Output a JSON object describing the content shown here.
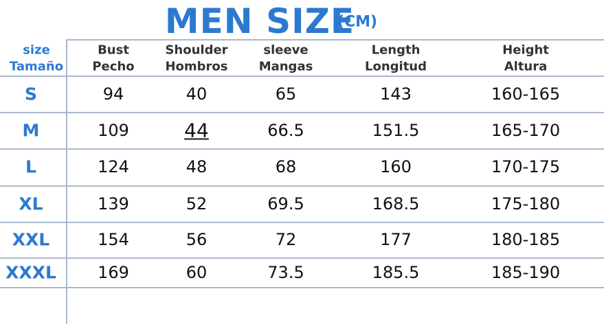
{
  "title": "MEN SIZE",
  "unit": "(CM)",
  "header": [
    [
      "size",
      "Tamaño"
    ],
    [
      "Bust",
      "Pecho"
    ],
    [
      "Shoulder",
      "Hombros"
    ],
    [
      "sleeve",
      "Mangas"
    ],
    [
      "Length",
      "Longitud"
    ],
    [
      "Height",
      "Altura"
    ]
  ],
  "rows": [
    [
      "S",
      "94",
      "40",
      "65",
      "143",
      "160-165"
    ],
    [
      "M",
      "109",
      "44",
      "66.5",
      "151.5",
      "165-170"
    ],
    [
      "L",
      "124",
      "48",
      "68",
      "160",
      "170-175"
    ],
    [
      "XL",
      "139",
      "52",
      "69.5",
      "168.5",
      "175-180"
    ],
    [
      "XXL",
      "154",
      "56",
      "72",
      "177",
      "180-185"
    ],
    [
      "XXXL",
      "169",
      "60",
      "73.5",
      "185.5",
      "185-190"
    ]
  ]
}
